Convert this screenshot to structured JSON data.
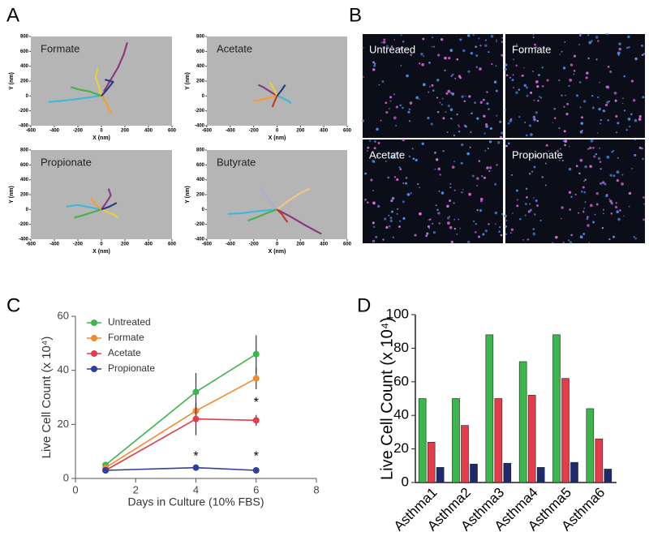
{
  "figure": {
    "panel_labels": [
      "A",
      "B",
      "C",
      "D"
    ]
  },
  "images": [
    {
      "label": "Untreated"
    },
    {
      "label": "Formate"
    },
    {
      "label": "Acetate"
    },
    {
      "label": "Propionate"
    }
  ],
  "chart_data": [
    {
      "type": "trajectory",
      "title": "Formate",
      "x_label": "X (nm)",
      "y_label": "Y (nm)",
      "xlim": [
        -600,
        600
      ],
      "xticks": [
        -600,
        -400,
        -200,
        0,
        200,
        400,
        600
      ],
      "ylim": [
        -400,
        800
      ],
      "yticks": [
        -400,
        -200,
        0,
        200,
        400,
        600,
        800
      ],
      "series": [
        {
          "color": "#8e3b7a",
          "x": [
            20,
            80,
            140,
            190,
            220
          ],
          "y": [
            60,
            220,
            380,
            560,
            720
          ]
        },
        {
          "color": "#e8cf3a",
          "x": [
            0,
            -20,
            -50,
            -30
          ],
          "y": [
            0,
            120,
            250,
            370
          ]
        },
        {
          "color": "#3fb8d8",
          "x": [
            -20,
            -150,
            -300,
            -450
          ],
          "y": [
            0,
            -30,
            -60,
            -80
          ]
        },
        {
          "color": "#f0a030",
          "x": [
            10,
            40,
            60,
            90
          ],
          "y": [
            0,
            -90,
            -170,
            -230
          ]
        },
        {
          "color": "#4caf50",
          "x": [
            0,
            -100,
            -200,
            -260
          ],
          "y": [
            0,
            60,
            90,
            120
          ]
        },
        {
          "color": "#2a3a8a",
          "x": [
            0,
            60,
            100,
            30
          ],
          "y": [
            0,
            110,
            190,
            220
          ]
        }
      ]
    },
    {
      "type": "trajectory",
      "title": "Acetate",
      "x_label": "X (nm)",
      "y_label": "Y (nm)",
      "xlim": [
        -600,
        600
      ],
      "xticks": [
        -600,
        -400,
        -200,
        0,
        200,
        400,
        600
      ],
      "ylim": [
        -400,
        800
      ],
      "yticks": [
        -400,
        -200,
        0,
        200,
        400,
        600,
        800
      ],
      "series": [
        {
          "color": "#8e3b7a",
          "x": [
            0,
            -60,
            -120,
            -160
          ],
          "y": [
            0,
            60,
            120,
            150
          ]
        },
        {
          "color": "#e8cf3a",
          "x": [
            0,
            -30,
            -60
          ],
          "y": [
            0,
            100,
            180
          ]
        },
        {
          "color": "#3fb8d8",
          "x": [
            0,
            50,
            100,
            120
          ],
          "y": [
            0,
            -30,
            -70,
            -100
          ]
        },
        {
          "color": "#f0a030",
          "x": [
            0,
            -80,
            -160,
            -200
          ],
          "y": [
            0,
            -30,
            -60,
            -70
          ]
        },
        {
          "color": "#c0392b",
          "x": [
            0,
            -20,
            -40
          ],
          "y": [
            0,
            -70,
            -150
          ]
        },
        {
          "color": "#2a3a8a",
          "x": [
            0,
            40,
            70
          ],
          "y": [
            0,
            80,
            150
          ]
        }
      ]
    },
    {
      "type": "trajectory",
      "title": "Propionate",
      "x_label": "X (nm)",
      "y_label": "Y (nm)",
      "xlim": [
        -600,
        600
      ],
      "xticks": [
        -600,
        -400,
        -200,
        0,
        200,
        400,
        600
      ],
      "ylim": [
        -400,
        800
      ],
      "yticks": [
        -400,
        -200,
        0,
        200,
        400,
        600,
        800
      ],
      "series": [
        {
          "color": "#3fb8d8",
          "x": [
            0,
            -100,
            -200,
            -300
          ],
          "y": [
            0,
            30,
            60,
            40
          ]
        },
        {
          "color": "#4caf50",
          "x": [
            0,
            -80,
            -160,
            -230
          ],
          "y": [
            0,
            -40,
            -80,
            -110
          ]
        },
        {
          "color": "#8e3b7a",
          "x": [
            0,
            40,
            80,
            60
          ],
          "y": [
            0,
            90,
            190,
            280
          ]
        },
        {
          "color": "#e8cf3a",
          "x": [
            0,
            60,
            110,
            140
          ],
          "y": [
            0,
            -40,
            -70,
            -120
          ]
        },
        {
          "color": "#f0a030",
          "x": [
            0,
            -50,
            -90
          ],
          "y": [
            0,
            70,
            150
          ]
        },
        {
          "color": "#2a3a8a",
          "x": [
            0,
            70,
            130
          ],
          "y": [
            0,
            40,
            90
          ]
        }
      ]
    },
    {
      "type": "trajectory",
      "title": "Butyrate",
      "x_label": "X (nm)",
      "y_label": "Y (nm)",
      "xlim": [
        -600,
        600
      ],
      "xticks": [
        -600,
        -400,
        -200,
        0,
        200,
        400,
        600
      ],
      "ylim": [
        -400,
        800
      ],
      "yticks": [
        -400,
        -200,
        0,
        200,
        400,
        600,
        800
      ],
      "series": [
        {
          "color": "#8e3b7a",
          "x": [
            0,
            120,
            250,
            380
          ],
          "y": [
            0,
            -100,
            -220,
            -330
          ]
        },
        {
          "color": "#f2c48a",
          "x": [
            0,
            100,
            200,
            280
          ],
          "y": [
            0,
            120,
            220,
            280
          ]
        },
        {
          "color": "#3fb8d8",
          "x": [
            0,
            -150,
            -300,
            -420
          ],
          "y": [
            0,
            -20,
            -50,
            -60
          ]
        },
        {
          "color": "#b9a6d6",
          "x": [
            0,
            -60,
            -120,
            -140
          ],
          "y": [
            0,
            110,
            230,
            330
          ]
        },
        {
          "color": "#4caf50",
          "x": [
            0,
            -90,
            -180,
            -250
          ],
          "y": [
            0,
            -50,
            -110,
            -150
          ]
        },
        {
          "color": "#c0392b",
          "x": [
            0,
            40,
            70,
            90
          ],
          "y": [
            0,
            -60,
            -130,
            -170
          ]
        }
      ]
    },
    {
      "type": "line",
      "x_label": "Days in Culture (10% FBS)",
      "y_label": "Live Cell Count (x 10⁴)",
      "x": [
        1,
        4,
        6
      ],
      "xlim": [
        0,
        8
      ],
      "xticks": [
        0,
        2,
        4,
        6,
        8
      ],
      "ylim": [
        0,
        60
      ],
      "yticks": [
        0,
        20,
        40,
        60
      ],
      "legend": "upper left",
      "series": [
        {
          "name": "Untreated",
          "color": "#3cb54a",
          "values": [
            5,
            32,
            46
          ],
          "errors": [
            0.5,
            7,
            7
          ]
        },
        {
          "name": "Formate",
          "color": "#f28a30",
          "values": [
            4,
            25,
            37
          ],
          "errors": [
            0.5,
            2.5,
            4
          ]
        },
        {
          "name": "Acetate",
          "color": "#e63b4a",
          "values": [
            3,
            22,
            21.5
          ],
          "errors": [
            0.5,
            6,
            2
          ]
        },
        {
          "name": "Propionate",
          "color": "#2f3f9e",
          "values": [
            3,
            4,
            3
          ],
          "errors": [
            0.5,
            0.5,
            0.5
          ]
        }
      ],
      "annotations": [
        {
          "text": "*",
          "x": 4,
          "y": 8
        },
        {
          "text": "*",
          "x": 6,
          "y": 8
        },
        {
          "text": "*",
          "x": 6,
          "y": 28
        }
      ]
    },
    {
      "type": "bar",
      "y_label": "Live Cell Count (x 10⁴)",
      "categories": [
        "Asthma1",
        "Asthma2",
        "Asthma3",
        "Asthma4",
        "Asthma5",
        "Asthma6"
      ],
      "ylim": [
        0,
        100
      ],
      "yticks": [
        0,
        20,
        40,
        60,
        80,
        100
      ],
      "series": [
        {
          "color": "#3cb54a",
          "values": [
            50,
            50,
            88,
            72,
            88,
            44
          ]
        },
        {
          "color": "#e63b4a",
          "values": [
            24,
            34,
            50,
            52,
            62,
            26
          ]
        },
        {
          "color": "#1f2a6e",
          "values": [
            9,
            11,
            11.5,
            9,
            12,
            8
          ]
        }
      ]
    }
  ]
}
